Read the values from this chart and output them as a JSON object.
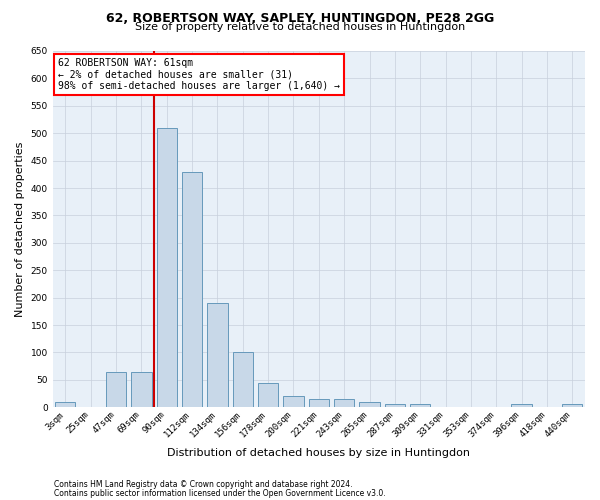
{
  "title1": "62, ROBERTSON WAY, SAPLEY, HUNTINGDON, PE28 2GG",
  "title2": "Size of property relative to detached houses in Huntingdon",
  "xlabel": "Distribution of detached houses by size in Huntingdon",
  "ylabel": "Number of detached properties",
  "categories": [
    "3sqm",
    "25sqm",
    "47sqm",
    "69sqm",
    "90sqm",
    "112sqm",
    "134sqm",
    "156sqm",
    "178sqm",
    "200sqm",
    "221sqm",
    "243sqm",
    "265sqm",
    "287sqm",
    "309sqm",
    "331sqm",
    "353sqm",
    "374sqm",
    "396sqm",
    "418sqm",
    "440sqm"
  ],
  "values": [
    10,
    0,
    65,
    65,
    510,
    430,
    190,
    100,
    45,
    20,
    15,
    15,
    10,
    6,
    5,
    0,
    0,
    0,
    5,
    0,
    5
  ],
  "bar_color": "#c8d8e8",
  "bar_edge_color": "#6699bb",
  "background_color": "#ffffff",
  "plot_bg_color": "#e8f0f8",
  "grid_color": "#c8d0dc",
  "annotation_box_text": "62 ROBERTSON WAY: 61sqm\n← 2% of detached houses are smaller (31)\n98% of semi-detached houses are larger (1,640) →",
  "vline_color": "#cc0000",
  "vline_x": 3.5,
  "ylim": [
    0,
    650
  ],
  "yticks": [
    0,
    50,
    100,
    150,
    200,
    250,
    300,
    350,
    400,
    450,
    500,
    550,
    600,
    650
  ],
  "footnote1": "Contains HM Land Registry data © Crown copyright and database right 2024.",
  "footnote2": "Contains public sector information licensed under the Open Government Licence v3.0.",
  "title1_fontsize": 9,
  "title2_fontsize": 8,
  "ylabel_fontsize": 8,
  "xlabel_fontsize": 8,
  "tick_fontsize": 6.5,
  "annot_fontsize": 7,
  "footnote_fontsize": 5.5
}
